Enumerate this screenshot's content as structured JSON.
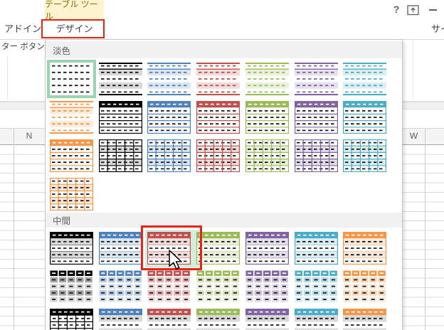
{
  "title_bar": {
    "contextual_tool_label": "テーブル ツール",
    "help_icon": "?",
    "ribbon_display_options_icon": "ribbon-display-options",
    "minimize_icon": "minimize",
    "signin_truncated": "サイ"
  },
  "tabs": [
    {
      "label": "アドイン",
      "active": false,
      "annotated": false
    },
    {
      "label": "デザイン",
      "active": true,
      "annotated": true
    }
  ],
  "ribbon": {
    "left_label_truncated": "ター ボタン"
  },
  "worksheet": {
    "left_column_header": "N",
    "right_column_header": "W"
  },
  "gallery": {
    "sections": [
      {
        "id": "light",
        "label": "淡色",
        "rows": [
          [
            {
              "kind": "plain",
              "color": "black",
              "state": "selected"
            },
            {
              "kind": "banded",
              "color": "black"
            },
            {
              "kind": "banded",
              "color": "blue"
            },
            {
              "kind": "banded",
              "color": "red"
            },
            {
              "kind": "banded",
              "color": "green"
            },
            {
              "kind": "banded",
              "color": "purple"
            },
            {
              "kind": "banded",
              "color": "teal"
            }
          ],
          [
            {
              "kind": "banded",
              "color": "orange"
            },
            {
              "kind": "header",
              "color": "black"
            },
            {
              "kind": "header",
              "color": "blue"
            },
            {
              "kind": "header",
              "color": "red"
            },
            {
              "kind": "header",
              "color": "green"
            },
            {
              "kind": "header",
              "color": "purple"
            },
            {
              "kind": "header",
              "color": "teal"
            }
          ],
          [
            {
              "kind": "header",
              "color": "orange"
            },
            {
              "kind": "grid",
              "color": "black"
            },
            {
              "kind": "grid",
              "color": "blue"
            },
            {
              "kind": "grid",
              "color": "red"
            },
            {
              "kind": "grid",
              "color": "green"
            },
            {
              "kind": "grid",
              "color": "purple"
            },
            {
              "kind": "grid",
              "color": "teal"
            }
          ],
          [
            {
              "kind": "grid",
              "color": "orange"
            }
          ]
        ]
      },
      {
        "id": "medium",
        "label": "中間",
        "rows": [
          [
            {
              "kind": "medium",
              "color": "black"
            },
            {
              "kind": "medium",
              "color": "blue"
            },
            {
              "kind": "medium",
              "color": "red",
              "state": "hovered",
              "annotated": true
            },
            {
              "kind": "medium",
              "color": "green"
            },
            {
              "kind": "medium",
              "color": "purple"
            },
            {
              "kind": "medium",
              "color": "teal"
            },
            {
              "kind": "medium",
              "color": "orange"
            }
          ],
          [
            {
              "kind": "blocks",
              "color": "black"
            },
            {
              "kind": "blocks",
              "color": "blue"
            },
            {
              "kind": "blocks",
              "color": "red"
            },
            {
              "kind": "blocks",
              "color": "green"
            },
            {
              "kind": "blocks",
              "color": "purple"
            },
            {
              "kind": "blocks",
              "color": "teal"
            },
            {
              "kind": "blocks",
              "color": "orange"
            }
          ],
          [
            {
              "kind": "mgrid",
              "color": "black"
            },
            {
              "kind": "mband",
              "color": "blue"
            },
            {
              "kind": "mband",
              "color": "red"
            },
            {
              "kind": "mband",
              "color": "green"
            },
            {
              "kind": "mband",
              "color": "purple"
            },
            {
              "kind": "mband",
              "color": "teal"
            },
            {
              "kind": "mband",
              "color": "orange"
            }
          ]
        ]
      }
    ]
  },
  "palette": {
    "black": {
      "main": "#000000",
      "tint": "#d9d9d9",
      "t1": "#a6a6a6",
      "t2": "#d9d9d9"
    },
    "blue": {
      "main": "#4f81bd",
      "tint": "#dce6f1",
      "t1": "#b8cce4",
      "t2": "#dce6f1"
    },
    "red": {
      "main": "#c0504d",
      "tint": "#f2dcdb",
      "t1": "#e5b8b7",
      "t2": "#f2dcdb"
    },
    "green": {
      "main": "#9bbb59",
      "tint": "#ebf1dd",
      "t1": "#d7e4bc",
      "t2": "#ebf1dd"
    },
    "purple": {
      "main": "#8064a2",
      "tint": "#e5e0ec",
      "t1": "#ccc1d9",
      "t2": "#e5e0ec"
    },
    "teal": {
      "main": "#4bacc6",
      "tint": "#dbeef3",
      "t1": "#b7dde8",
      "t2": "#dbeef3"
    },
    "orange": {
      "main": "#f79646",
      "tint": "#fdeada",
      "t1": "#fbd5b5",
      "t2": "#fdeada"
    }
  },
  "ui_colors": {
    "annotation_red": "#e6241a",
    "selection_green": "#9cd3b0",
    "hover_mint": "#d6ebdb",
    "contextual_tab_bg": "#fdf3cf",
    "contextual_tab_text": "#8a6a00"
  }
}
